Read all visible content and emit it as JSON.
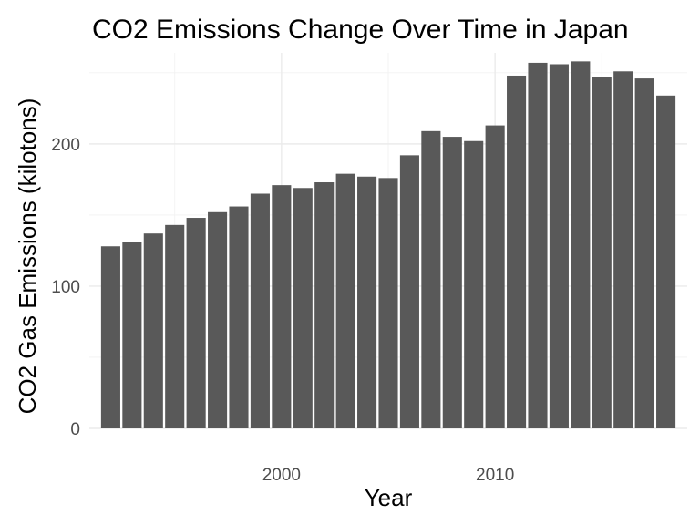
{
  "chart_data": {
    "type": "bar",
    "title": "CO2 Emissions Change Over Time in Japan",
    "xlabel": "Year",
    "ylabel": "CO2 Gas Emissions (kilotons)",
    "x": [
      1992,
      1993,
      1994,
      1995,
      1996,
      1997,
      1998,
      1999,
      2000,
      2001,
      2002,
      2003,
      2004,
      2005,
      2006,
      2007,
      2008,
      2009,
      2010,
      2011,
      2012,
      2013,
      2014,
      2015,
      2016,
      2017,
      2018
    ],
    "values": [
      128,
      131,
      137,
      143,
      148,
      152,
      156,
      165,
      171,
      169,
      173,
      179,
      177,
      176,
      192,
      209,
      205,
      202,
      213,
      248,
      257,
      256,
      258,
      247,
      251,
      246,
      234
    ],
    "xticks": [
      2000,
      2010
    ],
    "yticks": [
      0,
      100,
      200
    ],
    "xlim": [
      1991,
      2019
    ],
    "ylim": [
      0,
      264
    ],
    "bar_color": "#595959",
    "grid": true,
    "theme": "minimal"
  }
}
